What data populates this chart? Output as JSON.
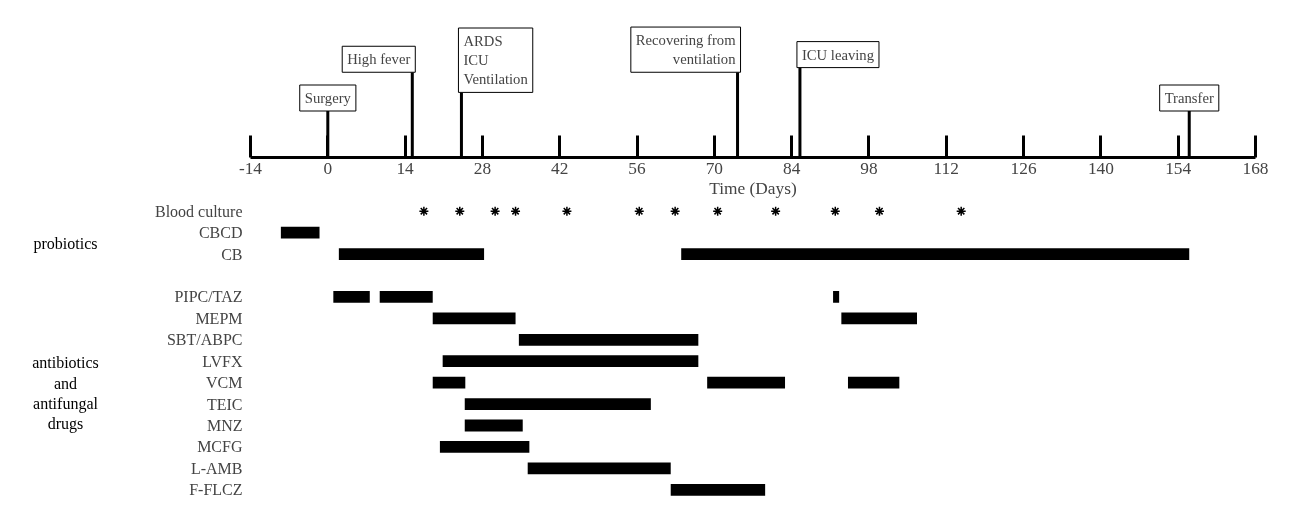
{
  "chart_data": {
    "type": "bar",
    "orientation": "horizontal",
    "xlabel": "Time (Days)",
    "categories": [
      "Blood culture",
      "CBCD",
      "CB",
      null,
      "PIPC/TAZ",
      "MEPM",
      "SBT/ABPC",
      "LVFX",
      "VCM",
      "TEIC",
      "MNZ",
      "MCFG",
      "L-AMB",
      "F-FLCZ"
    ],
    "series": [
      {
        "color": "#000000",
        "base": [
          null,
          -8.5,
          2,
          null,
          1,
          19,
          34.6,
          20.8,
          19,
          24.8,
          24.8,
          20.3,
          36.2,
          62.1
        ],
        "values": [
          null,
          7,
          26.3,
          null,
          6.6,
          15,
          32.5,
          46.3,
          5.9,
          33.7,
          10.5,
          16.2,
          25.9,
          17.1
        ]
      },
      {
        "color": "#000000",
        "base": [
          null,
          null,
          64,
          null,
          9.4,
          93,
          null,
          null,
          68.7,
          null,
          null,
          null,
          null,
          null
        ],
        "values": [
          null,
          null,
          92,
          null,
          9.6,
          13.7,
          null,
          null,
          14.1,
          null,
          null,
          null,
          null,
          null
        ]
      },
      {
        "color": "#000000",
        "base": [
          null,
          null,
          null,
          null,
          91.5,
          null,
          null,
          null,
          94.2,
          null,
          null,
          null,
          null,
          null
        ],
        "values": [
          null,
          null,
          null,
          null,
          1.1,
          null,
          null,
          null,
          9.3,
          null,
          null,
          null,
          null,
          null
        ]
      },
      {
        "type": "scatter",
        "marker": "cross",
        "color": "#000000",
        "values": [
          17.4,
          null,
          null,
          null,
          null,
          null,
          null,
          null,
          null,
          null,
          null,
          null,
          null,
          null
        ]
      },
      {
        "type": "scatter",
        "marker": "cross",
        "color": "#000000",
        "values": [
          23.9,
          null,
          null,
          null,
          null,
          null,
          null,
          null,
          null,
          null,
          null,
          null,
          null,
          null
        ]
      },
      {
        "type": "scatter",
        "marker": "cross",
        "color": "#000000",
        "values": [
          30.3,
          null,
          null,
          null,
          null,
          null,
          null,
          null,
          null,
          null,
          null,
          null,
          null,
          null
        ]
      },
      {
        "type": "scatter",
        "marker": "cross",
        "color": "#000000",
        "values": [
          34,
          null,
          null,
          null,
          null,
          null,
          null,
          null,
          null,
          null,
          null,
          null,
          null,
          null
        ]
      },
      {
        "type": "scatter",
        "marker": "cross",
        "color": "#000000",
        "values": [
          43.3,
          null,
          null,
          null,
          null,
          null,
          null,
          null,
          null,
          null,
          null,
          null,
          null,
          null
        ]
      },
      {
        "type": "scatter",
        "marker": "cross",
        "color": "#000000",
        "values": [
          56.4,
          null,
          null,
          null,
          null,
          null,
          null,
          null,
          null,
          null,
          null,
          null,
          null,
          null
        ]
      },
      {
        "type": "scatter",
        "marker": "cross",
        "color": "#000000",
        "values": [
          62.9,
          null,
          null,
          null,
          null,
          null,
          null,
          null,
          null,
          null,
          null,
          null,
          null,
          null
        ]
      },
      {
        "type": "scatter",
        "marker": "cross",
        "color": "#000000",
        "values": [
          70.6,
          null,
          null,
          null,
          null,
          null,
          null,
          null,
          null,
          null,
          null,
          null,
          null,
          null
        ]
      },
      {
        "type": "scatter",
        "marker": "cross",
        "color": "#000000",
        "values": [
          81.1,
          null,
          null,
          null,
          null,
          null,
          null,
          null,
          null,
          null,
          null,
          null,
          null,
          null
        ]
      },
      {
        "type": "scatter",
        "marker": "cross",
        "color": "#000000",
        "values": [
          91.9,
          null,
          null,
          null,
          null,
          null,
          null,
          null,
          null,
          null,
          null,
          null,
          null,
          null
        ]
      },
      {
        "type": "scatter",
        "marker": "cross",
        "color": "#000000",
        "values": [
          99.9,
          null,
          null,
          null,
          null,
          null,
          null,
          null,
          null,
          null,
          null,
          null,
          null,
          null
        ]
      },
      {
        "type": "scatter",
        "marker": "cross",
        "color": "#000000",
        "values": [
          114.7,
          null,
          null,
          null,
          null,
          null,
          null,
          null,
          null,
          null,
          null,
          null,
          null,
          null
        ]
      }
    ],
    "xlim": [
      -14,
      168
    ],
    "xticks": [
      -14,
      0,
      14,
      28,
      42,
      56,
      70,
      84,
      98,
      112,
      126,
      140,
      154,
      168
    ],
    "grid": false,
    "ref_lines": [
      {
        "axis": "x",
        "value": 0,
        "label": "Surgery"
      },
      {
        "axis": "x",
        "value": 15.3,
        "label": "High fever"
      },
      {
        "axis": "x",
        "value": 24.2,
        "label": "ARDS\nICU\nVentilation"
      },
      {
        "axis": "x",
        "value": 74.2,
        "label": "Recovering from\nventilation"
      },
      {
        "axis": "x",
        "value": 85.5,
        "label": "ICU leaving"
      },
      {
        "axis": "x",
        "value": 156,
        "label": "Transfer"
      }
    ],
    "annotations": [
      "probiotics",
      "antibiotics\nand\nantifungal\ndrugs"
    ]
  }
}
